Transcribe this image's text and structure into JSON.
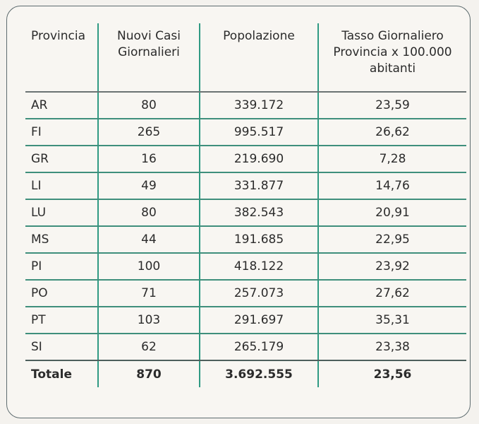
{
  "table": {
    "headers": [
      {
        "label": "Provincia"
      },
      {
        "line1": "Nuovi Casi",
        "line2": "Giornalieri"
      },
      {
        "label": "Popolazione"
      },
      {
        "line1": "Tasso Giornaliero",
        "line2": "Provincia x 100.000",
        "line3": "abitanti"
      }
    ],
    "rows": [
      {
        "provincia": "AR",
        "casi": "80",
        "popolazione": "339.172",
        "tasso": "23,59"
      },
      {
        "provincia": "FI",
        "casi": "265",
        "popolazione": "995.517",
        "tasso": "26,62"
      },
      {
        "provincia": "GR",
        "casi": "16",
        "popolazione": "219.690",
        "tasso": "7,28"
      },
      {
        "provincia": "LI",
        "casi": "49",
        "popolazione": "331.877",
        "tasso": "14,76"
      },
      {
        "provincia": "LU",
        "casi": "80",
        "popolazione": "382.543",
        "tasso": "20,91"
      },
      {
        "provincia": "MS",
        "casi": "44",
        "popolazione": "191.685",
        "tasso": "22,95"
      },
      {
        "provincia": "PI",
        "casi": "100",
        "popolazione": "418.122",
        "tasso": "23,92"
      },
      {
        "provincia": "PO",
        "casi": "71",
        "popolazione": "257.073",
        "tasso": "27,62"
      },
      {
        "provincia": "PT",
        "casi": "103",
        "popolazione": "291.697",
        "tasso": "35,31"
      },
      {
        "provincia": "SI",
        "casi": "62",
        "popolazione": "265.179",
        "tasso": "23,38"
      }
    ],
    "total": {
      "provincia": "Totale",
      "casi": "870",
      "popolazione": "3.692.555",
      "tasso": "23,56"
    }
  },
  "colors": {
    "background": "#f4f2ee",
    "panel": "#f8f6f2",
    "frame_border": "#5d6b6e",
    "vertical_lines": "#2f9a83",
    "row_lines": "#3f8f7c",
    "header_line": "#6b7373",
    "text": "#2b2b2b"
  }
}
